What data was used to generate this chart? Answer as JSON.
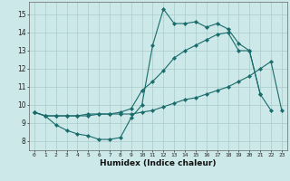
{
  "title": "",
  "xlabel": "Humidex (Indice chaleur)",
  "bg_color": "#cce8e8",
  "grid_color": "#aacccc",
  "line_color": "#1a6b6b",
  "xlim": [
    -0.5,
    23.5
  ],
  "ylim": [
    7.5,
    15.7
  ],
  "xticks": [
    0,
    1,
    2,
    3,
    4,
    5,
    6,
    7,
    8,
    9,
    10,
    11,
    12,
    13,
    14,
    15,
    16,
    17,
    18,
    19,
    20,
    21,
    22,
    23
  ],
  "yticks": [
    8,
    9,
    10,
    11,
    12,
    13,
    14,
    15
  ],
  "line1_y": [
    9.6,
    9.4,
    8.9,
    8.6,
    8.4,
    8.3,
    8.1,
    8.1,
    8.2,
    9.3,
    10.0,
    13.3,
    15.3,
    14.5,
    14.5,
    14.6,
    14.3,
    14.5,
    14.2,
    13.4,
    13.0,
    10.6,
    null,
    null
  ],
  "line2_y": [
    9.6,
    9.4,
    9.4,
    9.4,
    9.4,
    9.4,
    9.5,
    9.5,
    9.5,
    9.5,
    9.6,
    9.7,
    9.9,
    10.1,
    10.3,
    10.4,
    10.6,
    10.8,
    11.0,
    11.3,
    11.6,
    12.0,
    12.4,
    9.7
  ],
  "line3_y": [
    9.6,
    9.4,
    9.4,
    9.4,
    9.4,
    9.5,
    9.5,
    9.5,
    9.6,
    9.8,
    10.8,
    11.3,
    11.9,
    12.6,
    13.0,
    13.3,
    13.6,
    13.9,
    14.0,
    13.0,
    13.0,
    10.6,
    9.7,
    null
  ]
}
